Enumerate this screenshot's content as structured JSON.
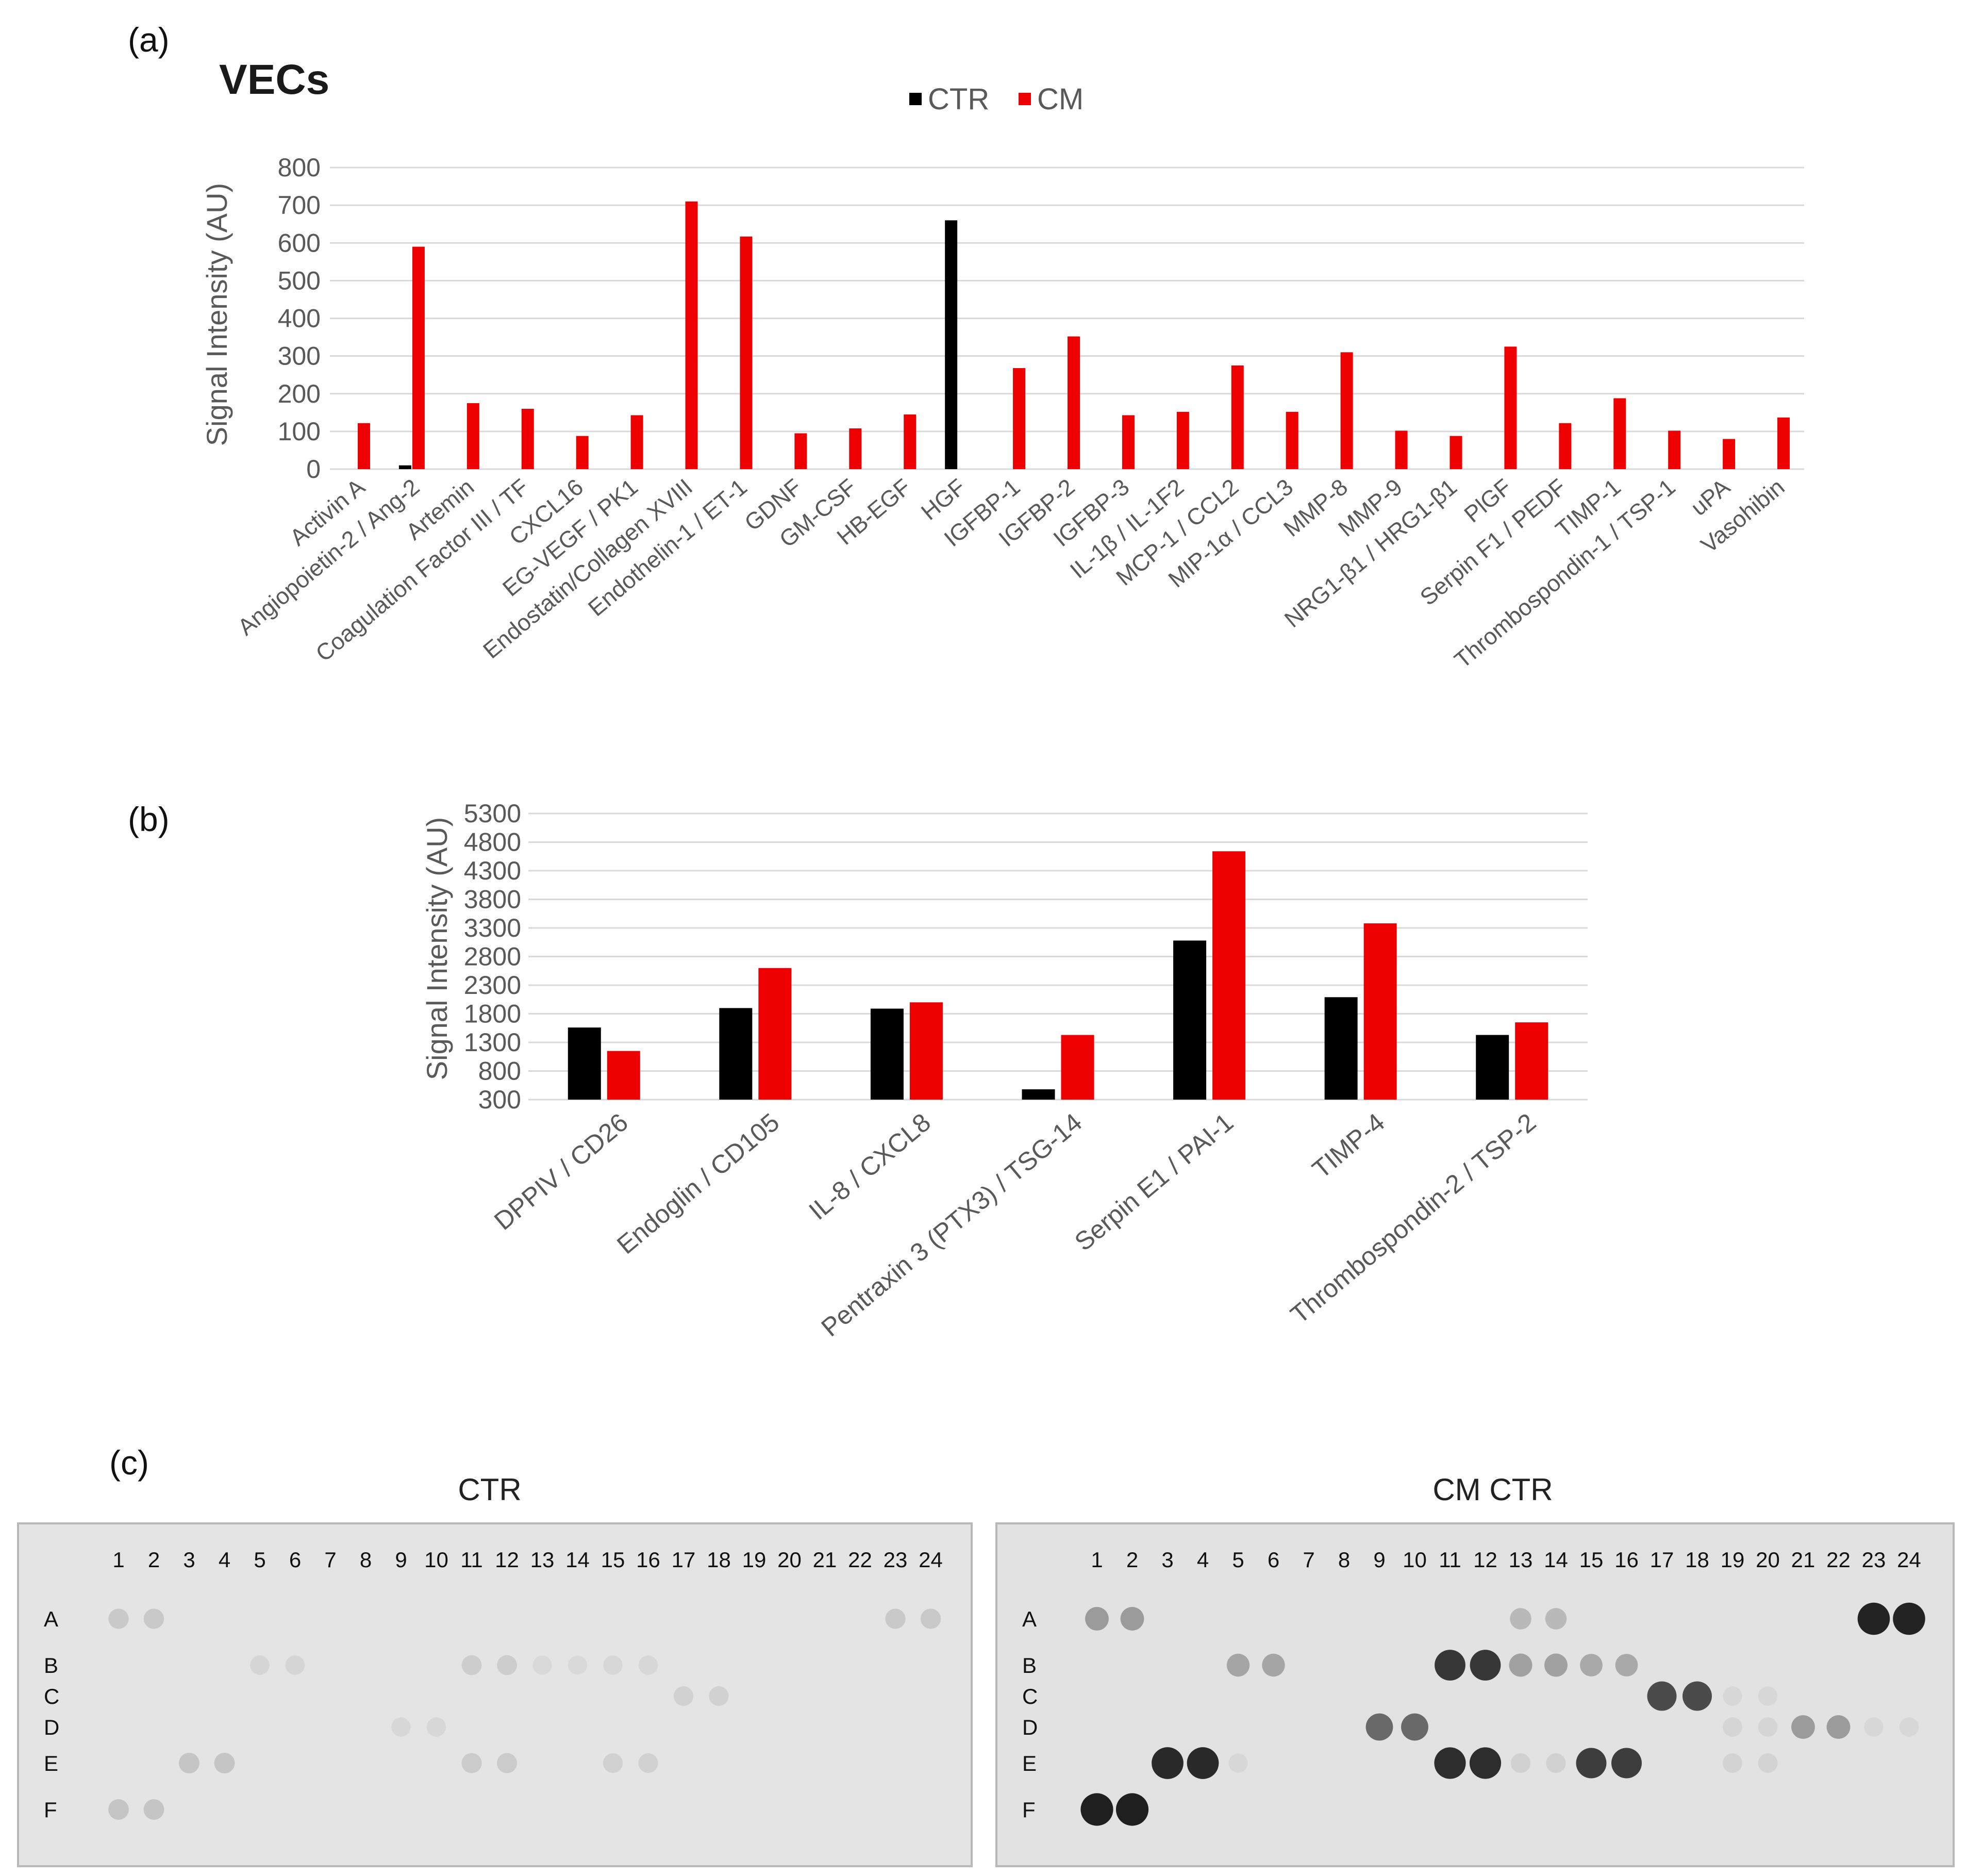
{
  "panels": {
    "a": "(a)",
    "b": "(b)",
    "c": "(c)"
  },
  "colors": {
    "ctr": "#000000",
    "cm": "#ee0000",
    "grid": "#d9d9d9"
  },
  "chart_data": [
    {
      "type": "bar",
      "title": "VECs",
      "ylabel": "Signal Intensity (AU)",
      "ylim": [
        0,
        800
      ],
      "yticks": [
        "0",
        "100",
        "200",
        "300",
        "400",
        "500",
        "600",
        "700",
        "800"
      ],
      "legend": {
        "position": "top-center",
        "entries": [
          "CTR",
          "CM"
        ]
      },
      "categories": [
        "Activin A",
        "Angiopoietin-2 / Ang-2",
        "Artemin",
        "Coagulation Factor III / TF",
        "CXCL16",
        "EG-VEGF / PK1",
        "Endostatin/Collagen XVIII",
        "Endothelin-1 / ET-1",
        "GDNF",
        "GM-CSF",
        "HB-EGF",
        "HGF",
        "IGFBP-1",
        "IGFBP-2",
        "IGFBP-3",
        "IL-1β / IL-1F2",
        "MCP-1 / CCL2",
        "MIP-1α / CCL3",
        "MMP-8",
        "MMP-9",
        "NRG1-β1 / HRG1-β1",
        "PlGF",
        "Serpin F1 / PEDF",
        "TIMP-1",
        "Thrombospondin-1 / TSP-1",
        "uPA",
        "Vasohibin"
      ],
      "series": [
        {
          "name": "CTR",
          "values": [
            0,
            10,
            0,
            0,
            0,
            0,
            0,
            0,
            0,
            0,
            0,
            660,
            0,
            0,
            0,
            0,
            0,
            0,
            0,
            0,
            0,
            0,
            0,
            0,
            0,
            0,
            0
          ]
        },
        {
          "name": "CM",
          "values": [
            122,
            590,
            175,
            160,
            88,
            143,
            710,
            617,
            95,
            108,
            145,
            0,
            268,
            352,
            143,
            152,
            275,
            152,
            310,
            102,
            88,
            325,
            122,
            188,
            102,
            80,
            137
          ]
        }
      ]
    },
    {
      "type": "bar",
      "ylabel": "Signal Intensity (AU)",
      "ylim": [
        300,
        5300
      ],
      "yticks": [
        "300",
        "800",
        "1300",
        "1800",
        "2300",
        "2800",
        "3300",
        "3800",
        "4300",
        "4800",
        "5300"
      ],
      "categories": [
        "DPPIV / CD26",
        "Endoglin / CD105",
        "IL-8 / CXCL8",
        "Pentraxin 3 (PTX3) / TSG-14",
        "Serpin E1 / PAI-1",
        "TIMP-4",
        "Thrombospondin-2 / TSP-2"
      ],
      "series": [
        {
          "name": "CTR",
          "values": [
            1560,
            1900,
            1890,
            480,
            3080,
            2090,
            1430
          ]
        },
        {
          "name": "CM",
          "values": [
            1150,
            2600,
            2000,
            1430,
            4640,
            3380,
            1650
          ]
        }
      ]
    }
  ],
  "blots": {
    "left_title": "CTR",
    "right_title": "CM CTR",
    "columns": [
      "1",
      "2",
      "3",
      "4",
      "5",
      "6",
      "7",
      "8",
      "9",
      "10",
      "11",
      "12",
      "13",
      "14",
      "15",
      "16",
      "17",
      "18",
      "19",
      "20",
      "21",
      "22",
      "23",
      "24"
    ],
    "rows": [
      "A",
      "B",
      "C",
      "D",
      "E",
      "F"
    ],
    "left_spots": [
      {
        "row": "A",
        "col": 1,
        "level": 0.12
      },
      {
        "row": "A",
        "col": 2,
        "level": 0.12
      },
      {
        "row": "A",
        "col": 23,
        "level": 0.12
      },
      {
        "row": "A",
        "col": 24,
        "level": 0.12
      },
      {
        "row": "B",
        "col": 5,
        "level": 0.06
      },
      {
        "row": "B",
        "col": 6,
        "level": 0.06
      },
      {
        "row": "B",
        "col": 11,
        "level": 0.1
      },
      {
        "row": "B",
        "col": 12,
        "level": 0.1
      },
      {
        "row": "B",
        "col": 13,
        "level": 0.04
      },
      {
        "row": "B",
        "col": 14,
        "level": 0.04
      },
      {
        "row": "B",
        "col": 15,
        "level": 0.05
      },
      {
        "row": "B",
        "col": 16,
        "level": 0.05
      },
      {
        "row": "C",
        "col": 17,
        "level": 0.08
      },
      {
        "row": "C",
        "col": 18,
        "level": 0.08
      },
      {
        "row": "D",
        "col": 9,
        "level": 0.05
      },
      {
        "row": "D",
        "col": 10,
        "level": 0.05
      },
      {
        "row": "E",
        "col": 3,
        "level": 0.14
      },
      {
        "row": "E",
        "col": 4,
        "level": 0.14
      },
      {
        "row": "E",
        "col": 11,
        "level": 0.11
      },
      {
        "row": "E",
        "col": 12,
        "level": 0.11
      },
      {
        "row": "E",
        "col": 15,
        "level": 0.08
      },
      {
        "row": "E",
        "col": 16,
        "level": 0.08
      },
      {
        "row": "F",
        "col": 1,
        "level": 0.14
      },
      {
        "row": "F",
        "col": 2,
        "level": 0.14
      }
    ],
    "right_spots": [
      {
        "row": "A",
        "col": 1,
        "level": 0.35
      },
      {
        "row": "A",
        "col": 2,
        "level": 0.35
      },
      {
        "row": "A",
        "col": 13,
        "level": 0.2
      },
      {
        "row": "A",
        "col": 14,
        "level": 0.2
      },
      {
        "row": "A",
        "col": 23,
        "level": 0.95
      },
      {
        "row": "A",
        "col": 24,
        "level": 0.95
      },
      {
        "row": "B",
        "col": 5,
        "level": 0.3
      },
      {
        "row": "B",
        "col": 6,
        "level": 0.3
      },
      {
        "row": "B",
        "col": 11,
        "level": 0.85
      },
      {
        "row": "B",
        "col": 12,
        "level": 0.85
      },
      {
        "row": "B",
        "col": 13,
        "level": 0.32
      },
      {
        "row": "B",
        "col": 14,
        "level": 0.32
      },
      {
        "row": "B",
        "col": 15,
        "level": 0.28
      },
      {
        "row": "B",
        "col": 16,
        "level": 0.28
      },
      {
        "row": "C",
        "col": 19,
        "level": 0.05
      },
      {
        "row": "C",
        "col": 20,
        "level": 0.05
      },
      {
        "row": "D",
        "col": 9,
        "level": 0.6
      },
      {
        "row": "D",
        "col": 10,
        "level": 0.6
      },
      {
        "row": "C",
        "col": 17,
        "level": 0.75
      },
      {
        "row": "C",
        "col": 18,
        "level": 0.75
      },
      {
        "row": "D",
        "col": 21,
        "level": 0.35
      },
      {
        "row": "D",
        "col": 22,
        "level": 0.35
      },
      {
        "row": "D",
        "col": 19,
        "level": 0.06
      },
      {
        "row": "D",
        "col": 20,
        "level": 0.06
      },
      {
        "row": "D",
        "col": 23,
        "level": 0.05
      },
      {
        "row": "D",
        "col": 24,
        "level": 0.05
      },
      {
        "row": "E",
        "col": 3,
        "level": 0.92
      },
      {
        "row": "E",
        "col": 4,
        "level": 0.92
      },
      {
        "row": "E",
        "col": 11,
        "level": 0.9
      },
      {
        "row": "E",
        "col": 12,
        "level": 0.9
      },
      {
        "row": "E",
        "col": 13,
        "level": 0.08
      },
      {
        "row": "E",
        "col": 14,
        "level": 0.08
      },
      {
        "row": "E",
        "col": 15,
        "level": 0.82
      },
      {
        "row": "E",
        "col": 16,
        "level": 0.82
      },
      {
        "row": "E",
        "col": 19,
        "level": 0.07
      },
      {
        "row": "E",
        "col": 20,
        "level": 0.07
      },
      {
        "row": "E",
        "col": 5,
        "level": 0.05
      },
      {
        "row": "F",
        "col": 1,
        "level": 0.97
      },
      {
        "row": "F",
        "col": 2,
        "level": 0.97
      }
    ]
  }
}
